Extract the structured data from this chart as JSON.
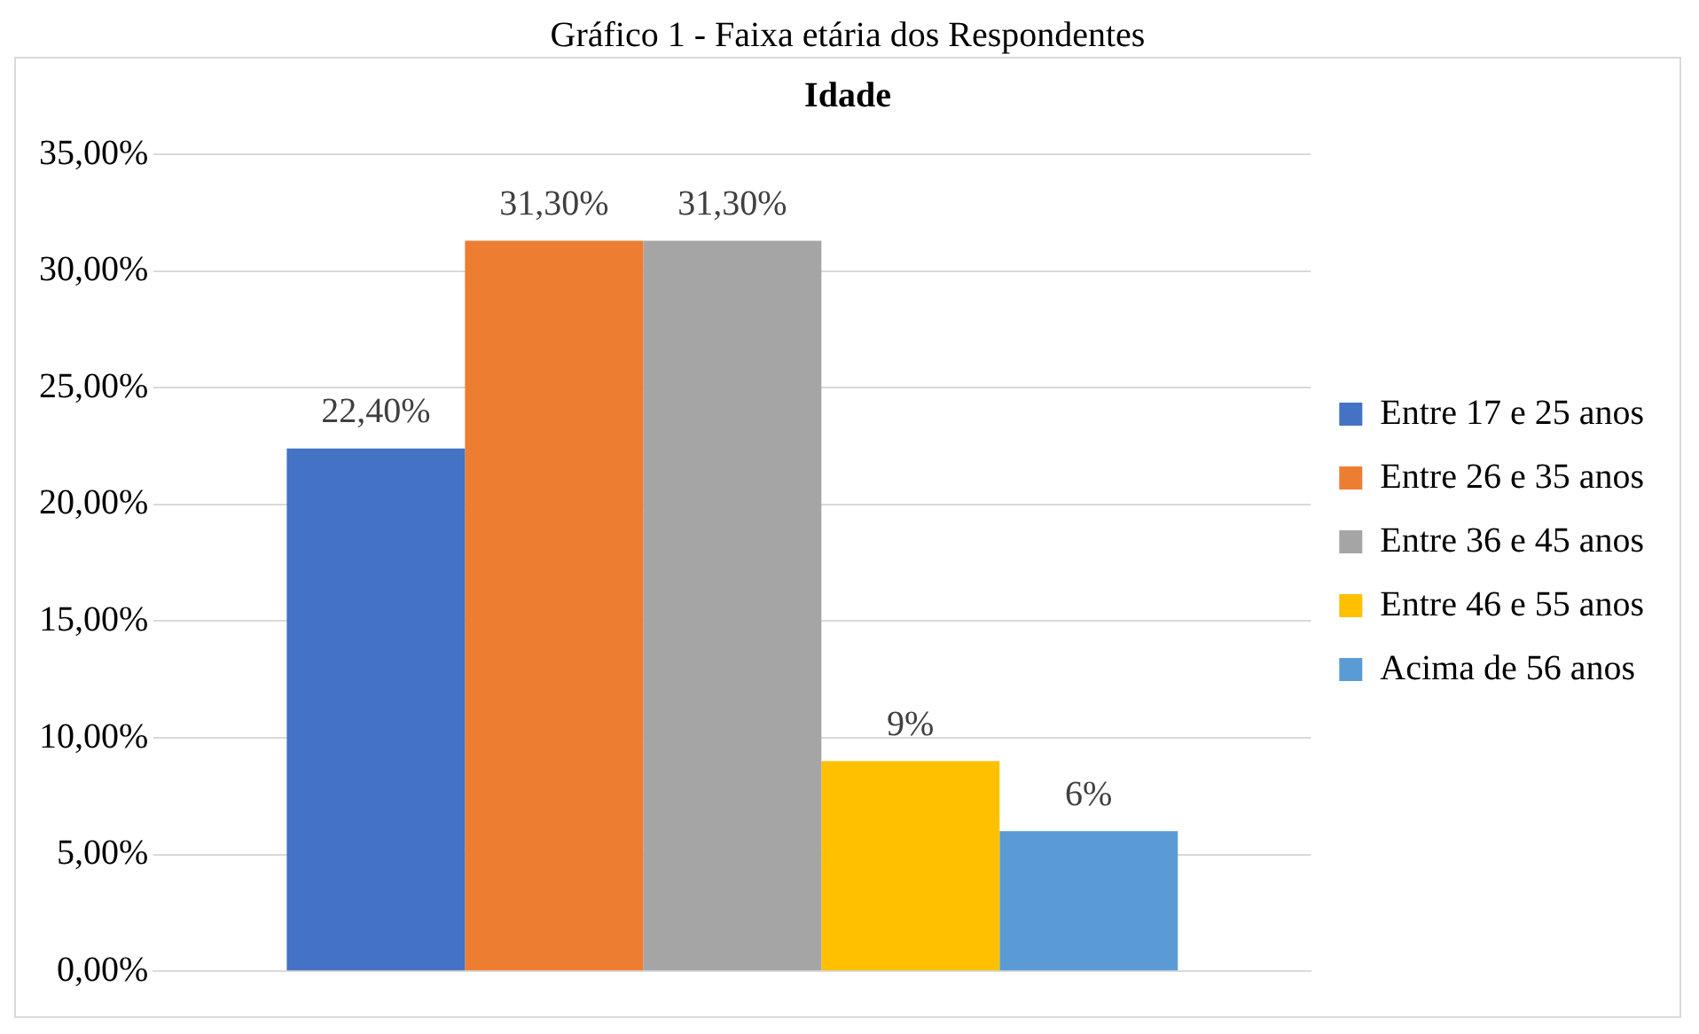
{
  "chart_data": {
    "type": "bar",
    "title": "Idade",
    "annotations": [
      "Gráfico 1 - Faixa etária dos Respondentes"
    ],
    "categories": [
      null
    ],
    "series": [
      {
        "name": "Entre 17 e 25 anos",
        "color": "#4472c4",
        "values": [
          22.4
        ],
        "value_labels": [
          "22,40%"
        ]
      },
      {
        "name": "Entre 26 e 35 anos",
        "color": "#ed7d31",
        "values": [
          31.3
        ],
        "value_labels": [
          "31,30%"
        ]
      },
      {
        "name": "Entre 36 e 45 anos",
        "color": "#a5a5a5",
        "values": [
          31.3
        ],
        "value_labels": [
          "31,30%"
        ]
      },
      {
        "name": "Entre 46 e 55 anos",
        "color": "#ffc000",
        "values": [
          9
        ],
        "value_labels": [
          "9%"
        ]
      },
      {
        "name": "Acima de 56 anos",
        "color": "#5b9bd5",
        "values": [
          6
        ],
        "value_labels": [
          "6%"
        ]
      }
    ],
    "ylim": [
      0,
      35
    ],
    "yticks": [
      {
        "value": 0,
        "label": "0,00%"
      },
      {
        "value": 5,
        "label": "5,00%"
      },
      {
        "value": 10,
        "label": "10,00%"
      },
      {
        "value": 15,
        "label": "15,00%"
      },
      {
        "value": 20,
        "label": "20,00%"
      },
      {
        "value": 25,
        "label": "25,00%"
      },
      {
        "value": 30,
        "label": "30,00%"
      },
      {
        "value": 35,
        "label": "35,00%"
      }
    ],
    "grid": "y",
    "legend": "right"
  }
}
